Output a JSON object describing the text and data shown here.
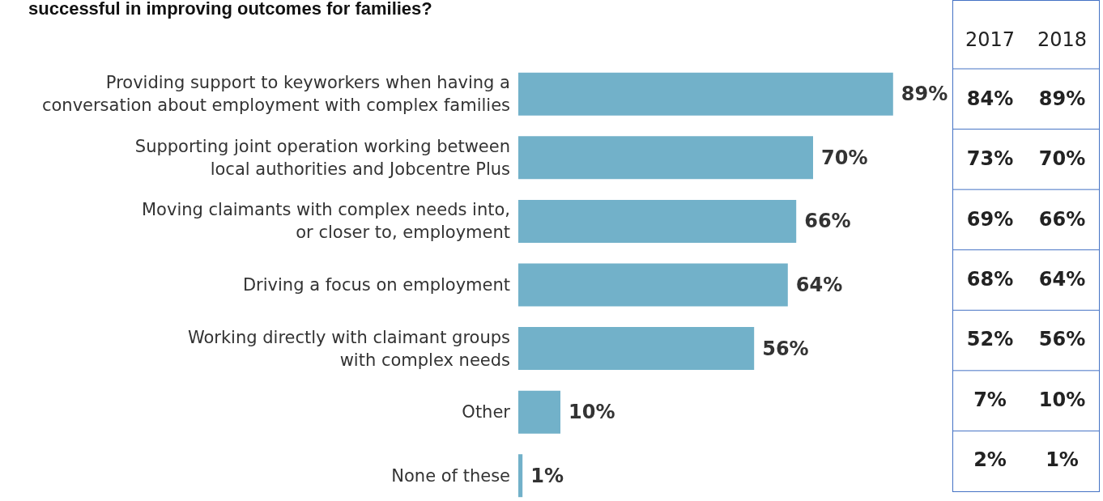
{
  "chart_data": [
    {
      "type": "bar",
      "title": "successful in improving outcomes for families?",
      "orientation": "horizontal",
      "categories": [
        "Providing support to keyworkers when having a\nconversation about employment with complex families",
        "Supporting joint operation working between\nlocal authorities and Jobcentre Plus",
        "Moving claimants with complex needs into,\nor closer to, employment",
        "Driving a focus on employment",
        "Working directly with claimant groups\nwith complex needs",
        "Other",
        "None of these"
      ],
      "values": [
        89,
        70,
        66,
        64,
        56,
        10,
        1
      ],
      "value_labels": [
        "89%",
        "70%",
        "66%",
        "64%",
        "56%",
        "10%",
        "1%"
      ],
      "color": "#72b1c9"
    },
    {
      "type": "heatmap",
      "categories": [
        "2017",
        "2018"
      ],
      "y_categories": [
        null,
        null,
        null,
        null,
        null,
        null,
        null
      ],
      "cells": [
        [
          84,
          89
        ],
        [
          73,
          70
        ],
        [
          69,
          66
        ],
        [
          68,
          64
        ],
        [
          52,
          56
        ],
        [
          7,
          10
        ],
        [
          2,
          1
        ]
      ],
      "cell_labels": [
        [
          "84%",
          "89%"
        ],
        [
          "73%",
          "70%"
        ],
        [
          "69%",
          "66%"
        ],
        [
          "68%",
          "64%"
        ],
        [
          "52%",
          "56%"
        ],
        [
          "7%",
          "10%"
        ],
        [
          "2%",
          "1%"
        ]
      ]
    }
  ]
}
